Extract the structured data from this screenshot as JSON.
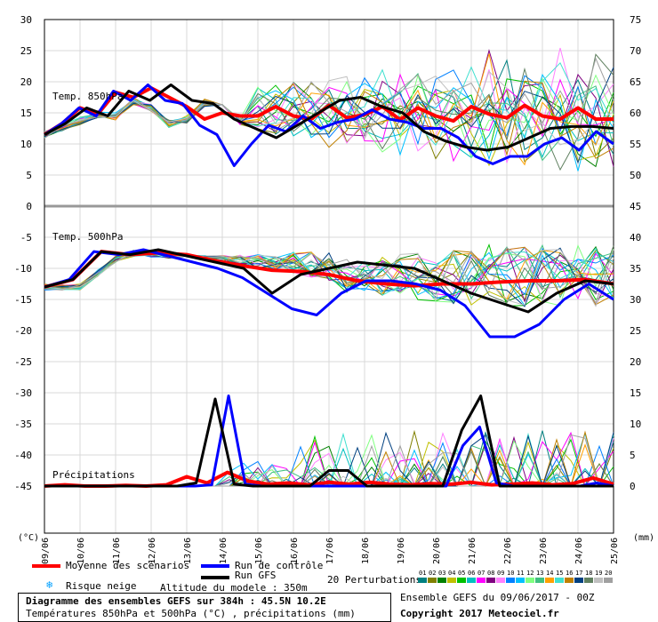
{
  "chart_data": {
    "type": "line",
    "title": "Diagramme des ensembles GEFS sur 384h : 45.5N 10.2E",
    "subtitle": "Températures 850hPa et 500hPa (°C) , précipitations (mm)",
    "left_unit": "(°C)",
    "right_unit": "(mm)",
    "left_ticks": [
      30,
      25,
      20,
      15,
      10,
      5,
      0,
      -5,
      -10,
      -15,
      -20,
      -25,
      -30,
      -35,
      -40,
      -45
    ],
    "right_ticks_upper": [
      75,
      70,
      65,
      60,
      55,
      50,
      45
    ],
    "right_ticks_lower": [
      40,
      35,
      30,
      25,
      20,
      15,
      10,
      5,
      0
    ],
    "x_dates": [
      "09/06",
      "10/06",
      "11/06",
      "12/06",
      "13/06",
      "14/06",
      "15/06",
      "16/06",
      "17/06",
      "18/06",
      "19/06",
      "20/06",
      "21/06",
      "22/06",
      "23/06",
      "24/06",
      "25/06"
    ],
    "panels": {
      "t850": {
        "label": "Temp. 850hPa",
        "ylim": [
          0,
          30
        ]
      },
      "t500": {
        "label": "Temp. 500hPa",
        "ylim": [
          -30,
          -5
        ]
      },
      "precip": {
        "label": "Précipitations",
        "ylim": [
          0,
          15
        ]
      }
    },
    "series": [
      {
        "name": "Moyenne des scénarios",
        "color": "#ff0000",
        "t850": [
          11.5,
          13.3,
          15.8,
          14.8,
          18.3,
          17.5,
          19.0,
          17.5,
          16.0,
          14.0,
          15.0,
          14.5,
          14.5,
          16.0,
          14.5,
          14.0,
          16.2,
          14.2,
          14.7,
          16.0,
          13.9,
          15.8,
          14.5,
          13.7,
          16.0,
          14.8,
          14.2,
          16.2,
          14.5,
          14.0,
          15.8,
          14.0,
          14.0
        ],
        "t500": [
          -13.0,
          -11.8,
          -7.3,
          -7.8,
          -7.5,
          -7.8,
          -8.8,
          -9.6,
          -10.3,
          -10.5,
          -11.0,
          -12.0,
          -12.5,
          -12.8,
          -12.5,
          -12.5,
          -12.2,
          -12.0,
          -12.0,
          -11.8,
          -12.5
        ],
        "precip": [
          0,
          0.2,
          0,
          0,
          0.1,
          0,
          0.2,
          1.5,
          0.5,
          2.2,
          0.8,
          0.3,
          0.5,
          0.2,
          0.6,
          0.3,
          0.6,
          0.3,
          0.2,
          0.4,
          0.3,
          0.6,
          0.2,
          0.3,
          0.5,
          0.2,
          0.4,
          1.3,
          0.3
        ]
      },
      {
        "name": "Run de contrôle",
        "color": "#0000ff",
        "t850": [
          11.5,
          13.3,
          15.8,
          14.5,
          18.5,
          17.0,
          19.5,
          17.0,
          16.5,
          13.0,
          11.5,
          6.5,
          10.0,
          13.0,
          12.0,
          14.5,
          12.5,
          13.5,
          14.0,
          15.5,
          14.0,
          13.5,
          12.5,
          12.5,
          11.0,
          8.0,
          6.8,
          8.0,
          8.0,
          10.0,
          11.0,
          9.0,
          12.0,
          10.0
        ],
        "t500": [
          -13.0,
          -11.8,
          -7.3,
          -7.8,
          -7.0,
          -8.0,
          -9.0,
          -10.0,
          -11.5,
          -14.0,
          -16.5,
          -17.5,
          -14.0,
          -12.0,
          -12.0,
          -12.5,
          -13.5,
          -16.0,
          -21.0,
          -21.0,
          -19.0,
          -15.0,
          -12.5,
          -15.0
        ],
        "precip": [
          0,
          0,
          0,
          0,
          0,
          0,
          0,
          0,
          0,
          0,
          0.2,
          14.5,
          0.3,
          0,
          0,
          0,
          0,
          0,
          0,
          0,
          0,
          0,
          0,
          0,
          0,
          6.5,
          9.5,
          0.5,
          0,
          0,
          0,
          0,
          0,
          0.5,
          0
        ]
      },
      {
        "name": "Run GFS",
        "color": "#000000",
        "t850": [
          11.5,
          13.3,
          15.8,
          14.5,
          18.5,
          17.0,
          19.5,
          17.0,
          16.5,
          14.0,
          12.5,
          11.0,
          13.0,
          15.0,
          17.0,
          17.5,
          16.0,
          15.0,
          12.0,
          10.5,
          9.5,
          9.0,
          9.5,
          11.0,
          12.5,
          12.8,
          12.8,
          12.5
        ],
        "t500": [
          -13.0,
          -11.8,
          -7.3,
          -7.8,
          -7.0,
          -8.0,
          -9.0,
          -10.0,
          -14.0,
          -11.0,
          -10.0,
          -9.0,
          -9.5,
          -10.0,
          -12.0,
          -14.0,
          -15.5,
          -17.0,
          -14.0,
          -12.0,
          -12.5
        ],
        "precip": [
          0,
          0,
          0,
          0,
          0,
          0,
          0,
          0,
          0.5,
          14.0,
          0.3,
          0,
          0,
          0,
          0,
          2.5,
          2.5,
          0,
          0,
          0,
          0,
          0,
          9.0,
          14.5,
          0,
          0,
          0,
          0,
          0,
          0,
          0
        ]
      }
    ],
    "grid": true,
    "legend": "bottom"
  },
  "legend": {
    "mean_label": "Moyenne des scénarios",
    "control_label": "Run de contrôle",
    "gfs_label": "Run GFS",
    "snow_label": "Risque neige",
    "altitude_label": "Altitude du modele : 350m",
    "perturbations_label": "20 Perturbations",
    "perturbation_numbers": [
      "01",
      "02",
      "03",
      "04",
      "05",
      "06",
      "07",
      "08",
      "09",
      "10",
      "11",
      "12",
      "13",
      "14",
      "15",
      "16",
      "17",
      "18",
      "19",
      "20"
    ],
    "perturbation_colors": [
      "#008080",
      "#808000",
      "#008000",
      "#c0c000",
      "#00c000",
      "#00c0c0",
      "#ff00ff",
      "#800080",
      "#ff80ff",
      "#0080ff",
      "#00c0ff",
      "#80ff80",
      "#40c080",
      "#ffa000",
      "#40e0d0",
      "#c08000",
      "#004080",
      "#608060",
      "#c0c0c0",
      "#a0a0a0"
    ]
  },
  "footer": {
    "ensemble_info": "Ensemble GEFS du 09/06/2017 - 00Z",
    "copyright": "Copyright 2017 Meteociel.fr"
  }
}
